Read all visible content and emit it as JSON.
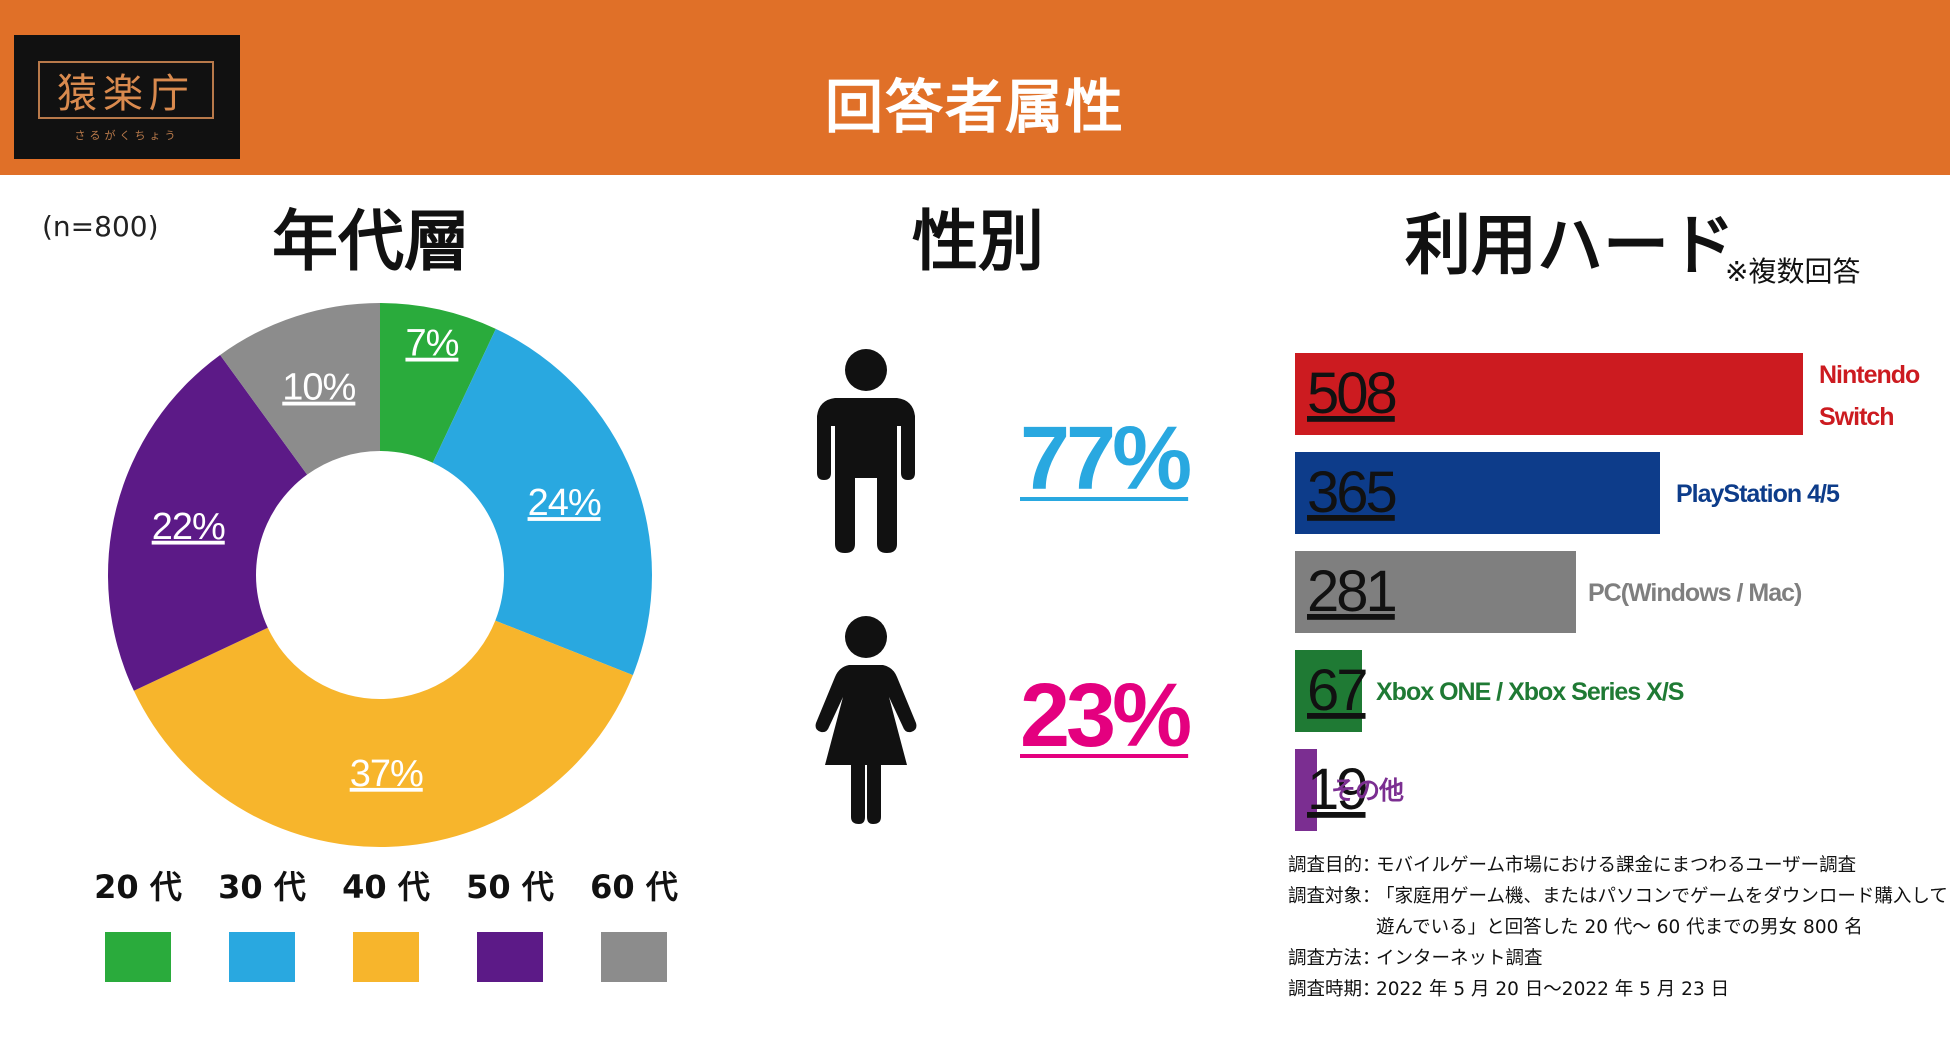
{
  "header": {
    "logo_text": "猿楽庁",
    "logo_sub": "さるがくちょう",
    "title": "回答者属性"
  },
  "sample_note": "(n=800)",
  "age_section": {
    "title": "年代層"
  },
  "gender_section": {
    "title": "性別",
    "male_pct": "77%",
    "female_pct": "23%",
    "male_color": "#29a8e0",
    "female_color": "#e4007f",
    "male_icon": "male-person-icon",
    "female_icon": "female-person-icon"
  },
  "hardware_section": {
    "title": "利用ハード",
    "note": "※複数回答"
  },
  "chart_data": [
    {
      "type": "pie",
      "subtype": "donut",
      "title": "年代層",
      "categories": [
        "20 代",
        "30 代",
        "40 代",
        "50 代",
        "60 代"
      ],
      "values": [
        7,
        24,
        37,
        22,
        10
      ],
      "labels": [
        "7%",
        "24%",
        "37%",
        "22%",
        "10%"
      ],
      "colors": [
        "#2aab3c",
        "#29a8e0",
        "#f7b52c",
        "#5c1a87",
        "#8c8c8c"
      ],
      "legend": "bottom"
    },
    {
      "type": "pie",
      "subtype": "icon-percent",
      "title": "性別",
      "values": [
        77,
        23
      ],
      "labels": [
        "77%",
        "23%"
      ],
      "colors": [
        "#29a8e0",
        "#e4007f"
      ]
    },
    {
      "type": "bar",
      "orientation": "horizontal",
      "title": "利用ハード",
      "note": "※複数回答",
      "categories": [
        "Nintendo Switch",
        "PlayStation 4/5",
        "PC(Windows / Mac)",
        "Xbox ONE / Xbox Series X/S",
        "その他"
      ],
      "category_lines": [
        [
          "Nintendo",
          "Switch"
        ],
        [
          "PlayStation 4/5"
        ],
        [
          "PC(Windows / Mac)"
        ],
        [
          "Xbox ONE / Xbox Series X/S"
        ],
        [
          "その他"
        ]
      ],
      "values": [
        508,
        365,
        281,
        67,
        19
      ],
      "value_labels": [
        "508",
        "365",
        "281",
        "67",
        "19"
      ],
      "colors": [
        "#cc1b20",
        "#0d3c8a",
        "#7f7f7f",
        "#1f7a34",
        "#7b2e91"
      ],
      "xlim": [
        0,
        508
      ]
    }
  ],
  "footnote": {
    "rows": [
      {
        "key": "調査目的",
        "value": "モバイルゲーム市場における課金にまつわるユーザー調査"
      },
      {
        "key": "調査対象",
        "value": "「家庭用ゲーム機、またはパソコンでゲームをダウンロード購入して"
      },
      {
        "key": "",
        "value": "遊んでいる」と回答した 20 代〜 60 代までの男女 800 名"
      },
      {
        "key": "調査方法",
        "value": "インターネット調査"
      },
      {
        "key": "調査時期",
        "value": "2022 年 5 月 20 日〜2022 年 5 月 23 日"
      }
    ],
    "separator": "："
  }
}
